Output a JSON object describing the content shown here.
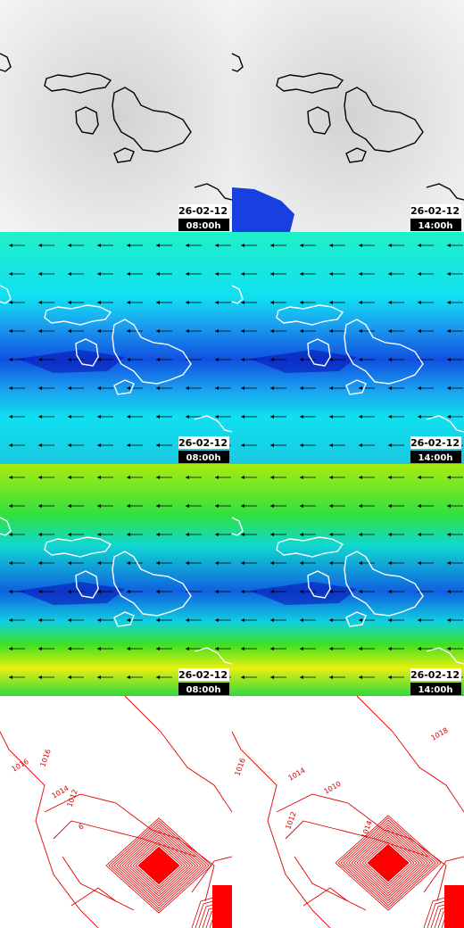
{
  "panels": [
    {
      "date": "26-02-12",
      "time": "08:00h"
    },
    {
      "date": "26-02-12",
      "time": "14:00h"
    },
    {
      "date": "26-02-12",
      "time": "08:00h"
    },
    {
      "date": "26-02-12",
      "time": "14:00h"
    },
    {
      "date": "26-02-12",
      "time": "08:00h"
    },
    {
      "date": "26-02-12",
      "time": "14:00h"
    }
  ],
  "contours": {
    "left": [
      "1016",
      "1016",
      "1014",
      "1012",
      "6"
    ],
    "right": [
      "1018",
      "1016",
      "1014",
      "1012",
      "1010",
      "1014"
    ]
  }
}
